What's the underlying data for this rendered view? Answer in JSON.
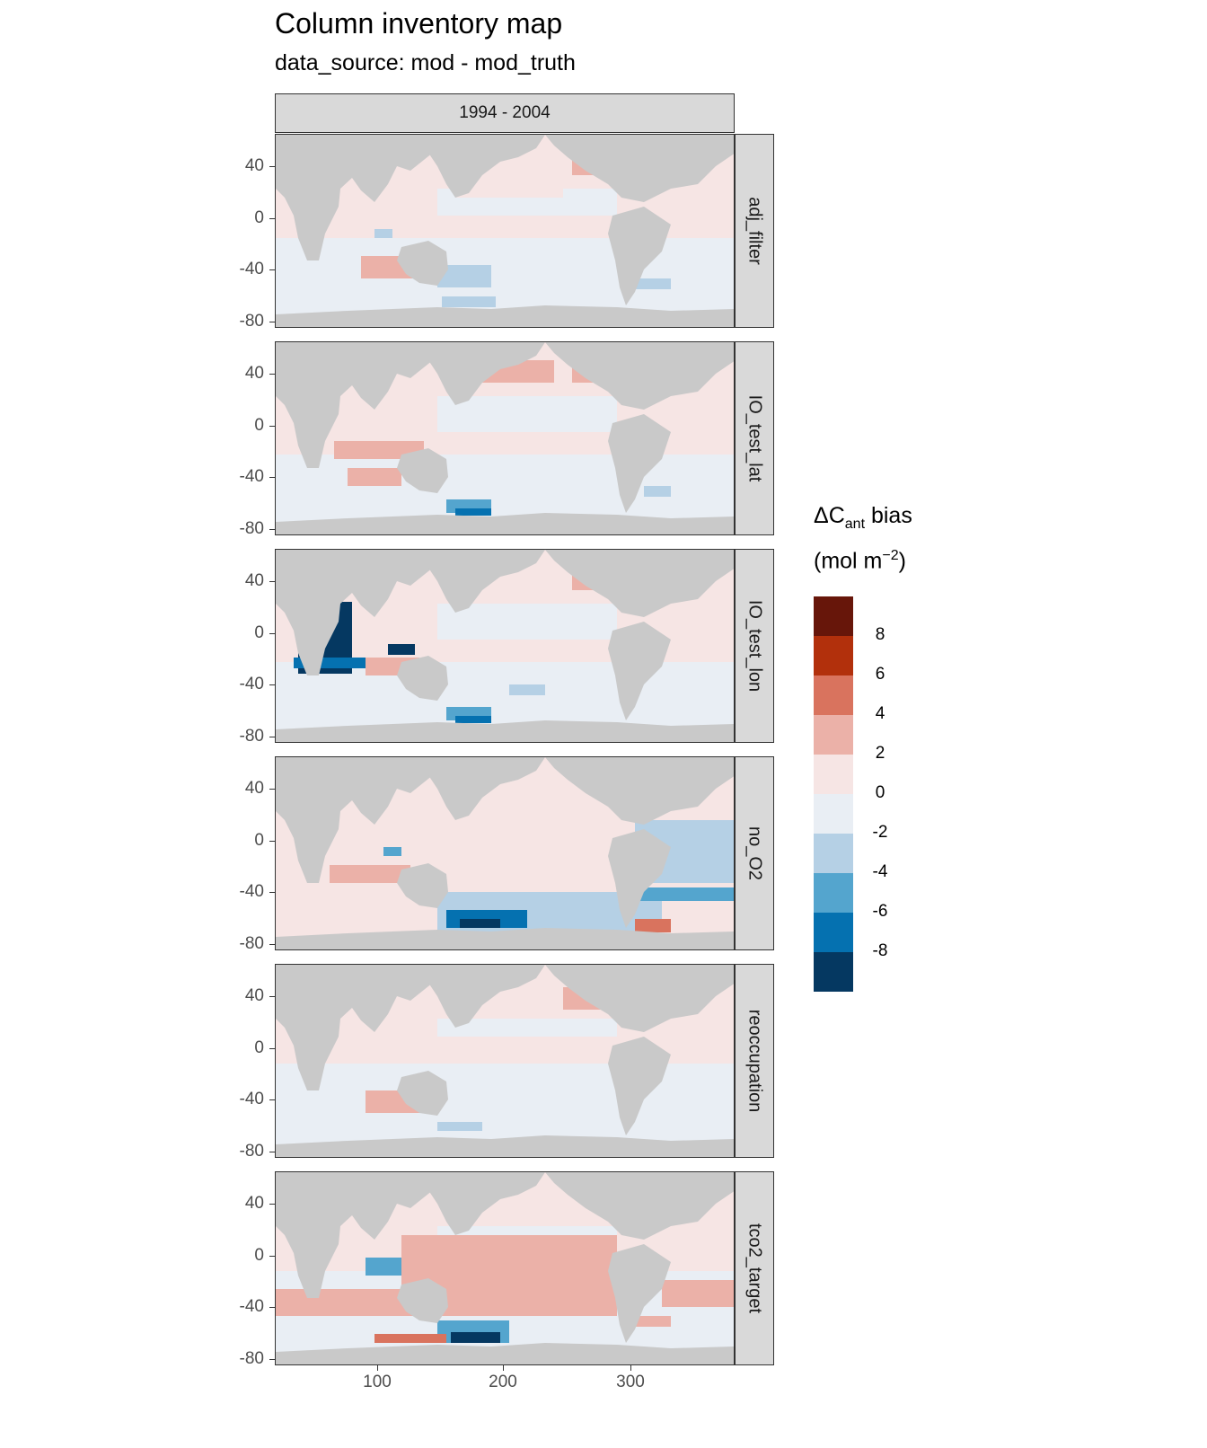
{
  "title": "Column inventory map",
  "subtitle": "data_source: mod - mod_truth",
  "facet_top": "1994 - 2004",
  "panels": [
    {
      "label": "adj_filter",
      "icon": "world-map-bias-adj-filter"
    },
    {
      "label": "IO_test_lat",
      "icon": "world-map-bias-io-test-lat"
    },
    {
      "label": "IO_test_lon",
      "icon": "world-map-bias-io-test-lon"
    },
    {
      "label": "no_O2",
      "icon": "world-map-bias-no-o2"
    },
    {
      "label": "reoccupation",
      "icon": "world-map-bias-reoccupation"
    },
    {
      "label": "tco2_target",
      "icon": "world-map-bias-tco2-target"
    }
  ],
  "y_ticks": [
    "40",
    "0",
    "-40",
    "-80"
  ],
  "x_ticks": [
    "100",
    "200",
    "300"
  ],
  "legend": {
    "title_main": "ΔC",
    "title_sub": "ant",
    "title_rest": " bias",
    "unit_prefix": "(mol m",
    "unit_sup": "−2",
    "unit_suffix": ")",
    "labels": [
      "8",
      "6",
      "4",
      "2",
      "0",
      "-2",
      "-4",
      "-6",
      "-8"
    ],
    "colors": [
      "#67160a",
      "#b2300c",
      "#d9735e",
      "#ebb1a8",
      "#f6e5e4",
      "#e9eef4",
      "#b5d0e5",
      "#54a5ce",
      "#0571b0",
      "#053861"
    ]
  },
  "colors": {
    "land": "#c9c9c9",
    "strip": "#d9d9d9"
  }
}
